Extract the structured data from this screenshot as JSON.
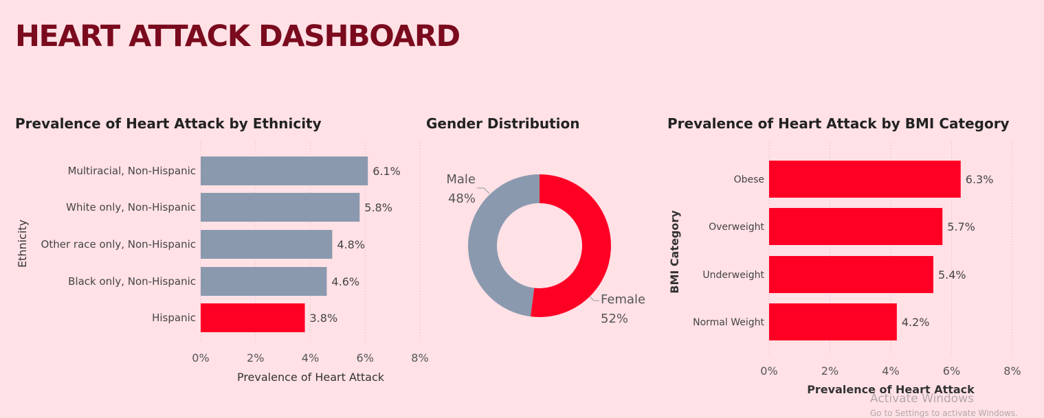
{
  "title": "HEART ATTACK DASHBOARD",
  "colors": {
    "gray": "#8a99ae",
    "red": "#ff0025",
    "title": "#7a0a1d",
    "background": "#ffe1e6"
  },
  "watermark": {
    "line1": "Activate Windows",
    "line2": "Go to Settings to activate Windows."
  },
  "chart_data": [
    {
      "type": "bar",
      "orientation": "horizontal",
      "title": "Prevalence of Heart Attack by Ethnicity",
      "xlabel": "Prevalence of Heart Attack",
      "ylabel": "Ethnicity",
      "categories": [
        "Multiracial, Non-Hispanic",
        "White only, Non-Hispanic",
        "Other race only, Non-Hispanic",
        "Black only, Non-Hispanic",
        "Hispanic"
      ],
      "values": [
        6.1,
        5.8,
        4.8,
        4.6,
        3.8
      ],
      "labels": [
        "6.1%",
        "5.8%",
        "4.8%",
        "4.6%",
        "3.8%"
      ],
      "bar_colors": [
        "#8a99ae",
        "#8a99ae",
        "#8a99ae",
        "#8a99ae",
        "#ff0025"
      ],
      "xlim": [
        0,
        8
      ],
      "xticks": [
        "0%",
        "2%",
        "4%",
        "6%",
        "8%"
      ],
      "grid": true
    },
    {
      "type": "pie",
      "subtype": "donut",
      "title": "Gender Distribution",
      "categories": [
        "Female",
        "Male"
      ],
      "values": [
        52,
        48
      ],
      "labels": [
        "52%",
        "48%"
      ],
      "slice_colors": [
        "#ff0025",
        "#8a99ae"
      ]
    },
    {
      "type": "bar",
      "orientation": "horizontal",
      "title": "Prevalence of Heart Attack by BMI Category",
      "xlabel": "Prevalence of Heart Attack",
      "ylabel": "BMI Category",
      "categories": [
        "Obese",
        "Overweight",
        "Underweight",
        "Normal Weight"
      ],
      "values": [
        6.3,
        5.7,
        5.4,
        4.2
      ],
      "labels": [
        "6.3%",
        "5.7%",
        "5.4%",
        "4.2%"
      ],
      "bar_colors": [
        "#ff0025",
        "#ff0025",
        "#ff0025",
        "#ff0025"
      ],
      "xlim": [
        0,
        8
      ],
      "xticks": [
        "0%",
        "2%",
        "4%",
        "6%",
        "8%"
      ],
      "grid": true
    }
  ]
}
